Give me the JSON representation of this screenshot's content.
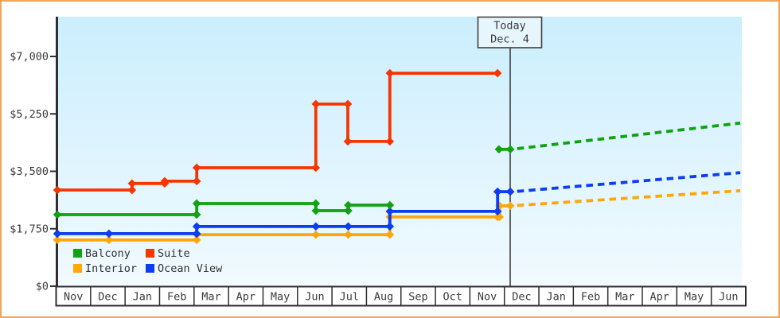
{
  "chart": {
    "today_box": {
      "line1": "Today",
      "line2": "Dec. 4"
    },
    "y_axis": {
      "tick_labels": [
        "$0",
        "$1,750",
        "$3,500",
        "$5,250",
        "$7,000"
      ],
      "tick_values": [
        0,
        1750,
        3500,
        5250,
        7000
      ]
    },
    "x_axis": {
      "month_labels": [
        "Nov",
        "Dec",
        "Jan",
        "Feb",
        "Mar",
        "Apr",
        "May",
        "Jun",
        "Jul",
        "Aug",
        "Sep",
        "Oct",
        "Nov",
        "Dec",
        "Jan",
        "Feb",
        "Mar",
        "Apr",
        "May",
        "Jun"
      ]
    },
    "legend": {
      "items": [
        {
          "label": "Balcony",
          "color": "#10a210"
        },
        {
          "label": "Suite",
          "color": "#f73500"
        },
        {
          "label": "Interior",
          "color": "#ffa60a"
        },
        {
          "label": "Ocean View",
          "color": "#0d3cf2"
        }
      ]
    },
    "colors": {
      "outer_border": "#efa65b",
      "axis": "#2f2f2f",
      "text": "#3a3a3a",
      "plot_bg_top": "#cbeefd",
      "plot_bg_bottom": "#f1faff",
      "month_cell_bg": "#ffffff",
      "today_line": "#3f3f3f",
      "today_box_fill": "#e7f6fd"
    }
  },
  "chart_data": {
    "type": "line",
    "title": "",
    "y_unit": "USD",
    "ylim": [
      0,
      7000
    ],
    "yticks": [
      0,
      1750,
      3500,
      5250,
      7000
    ],
    "x_unit": "months since first Nov tick (0 = Nov; 13.16 = today, Dec. 4)",
    "x_tick_months": [
      "Nov",
      "Dec",
      "Jan",
      "Feb",
      "Mar",
      "Apr",
      "May",
      "Jun",
      "Jul",
      "Aug",
      "Sep",
      "Oct",
      "Nov",
      "Dec",
      "Jan",
      "Feb",
      "Mar",
      "Apr",
      "May",
      "Jun"
    ],
    "today": {
      "label": "Today",
      "date": "Dec. 4",
      "month_index": 13.16
    },
    "values_note": "prices estimated from gridlines (~$10 precision); dotted segments are forecasts after today",
    "series": [
      {
        "name": "Interior",
        "color": "#ffa60a",
        "segments": [
          [
            [
              0,
              1410
            ],
            [
              1.5,
              1410
            ],
            [
              4.05,
              1410
            ],
            [
              4.05,
              1570
            ],
            [
              7.51,
              1570
            ],
            [
              8.45,
              1570
            ],
            [
              9.66,
              1570
            ],
            [
              9.66,
              2110
            ],
            [
              12.79,
              2110
            ],
            [
              12.85,
              2110
            ],
            [
              12.85,
              2450
            ],
            [
              13.16,
              2450
            ]
          ]
        ],
        "prediction": [
          [
            13.36,
            2460
          ],
          [
            19.84,
            2910
          ]
        ]
      },
      {
        "name": "Ocean View",
        "color": "#0d3cf2",
        "segments": [
          [
            [
              0,
              1600
            ],
            [
              1.5,
              1600
            ],
            [
              4.05,
              1600
            ],
            [
              4.05,
              1820
            ],
            [
              7.51,
              1820
            ],
            [
              8.45,
              1820
            ],
            [
              9.66,
              1820
            ],
            [
              9.66,
              2280
            ],
            [
              12.79,
              2280
            ],
            [
              12.79,
              2880
            ],
            [
              13.16,
              2880
            ]
          ]
        ],
        "prediction": [
          [
            13.36,
            2890
          ],
          [
            19.84,
            3460
          ]
        ]
      },
      {
        "name": "Balcony",
        "color": "#10a210",
        "segments": [
          [
            [
              0,
              2180
            ],
            [
              4.05,
              2180
            ],
            [
              4.05,
              2520
            ],
            [
              7.51,
              2520
            ],
            [
              7.51,
              2300
            ],
            [
              8.45,
              2300
            ],
            [
              8.45,
              2470
            ],
            [
              9.66,
              2470
            ]
          ],
          [
            [
              12.83,
              4170
            ],
            [
              13.16,
              4170
            ]
          ]
        ],
        "prediction": [
          [
            13.36,
            4190
          ],
          [
            19.84,
            4970
          ]
        ]
      },
      {
        "name": "Suite",
        "color": "#f73500",
        "segments": [
          [
            [
              0,
              2930
            ],
            [
              2.17,
              2930
            ],
            [
              2.17,
              3130
            ],
            [
              3.12,
              3130
            ],
            [
              3.12,
              3200
            ],
            [
              4.05,
              3200
            ],
            [
              4.05,
              3610
            ],
            [
              7.51,
              3610
            ],
            [
              7.51,
              5550
            ],
            [
              8.44,
              5550
            ],
            [
              8.44,
              4410
            ],
            [
              9.66,
              4410
            ],
            [
              9.66,
              6490
            ],
            [
              12.79,
              6490
            ]
          ]
        ],
        "prediction": []
      }
    ]
  }
}
